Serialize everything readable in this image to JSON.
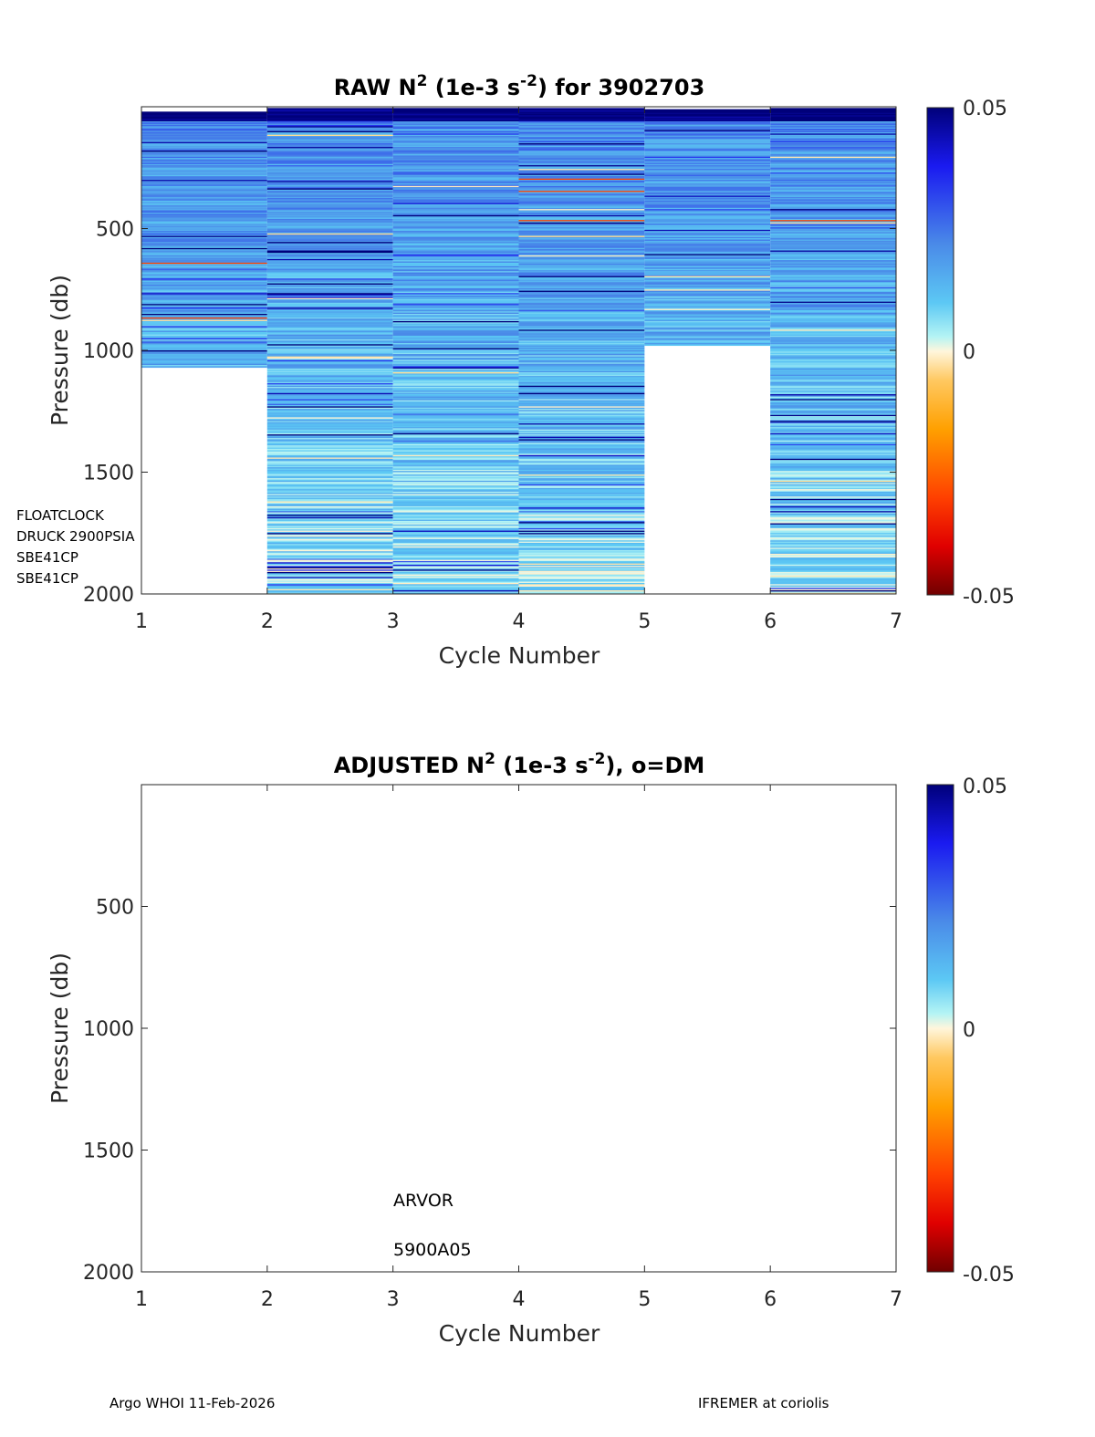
{
  "footer": {
    "left": "Argo WHOI 11-Feb-2026",
    "right": "IFREMER at coriolis"
  },
  "chart_data": [
    {
      "type": "heatmap",
      "title_prefix": "RAW N",
      "title_sup1": "2",
      "title_mid": " (1e-3 s",
      "title_sup2": "-2",
      "title_suffix": ") for 3902703",
      "xlabel": "Cycle Number",
      "ylabel": "Pressure (db)",
      "xlim": [
        1,
        7
      ],
      "ylim": [
        0,
        2000
      ],
      "x_ticks": [
        "1",
        "2",
        "3",
        "4",
        "5",
        "6",
        "7"
      ],
      "y_ticks": [
        "500",
        "1000",
        "1500",
        "2000"
      ],
      "y_tick_values": [
        500,
        1000,
        1500,
        2000
      ],
      "colorbar": {
        "min": -0.05,
        "max": 0.05,
        "tick_labels": [
          "0.05",
          "0",
          "-0.05"
        ],
        "colormap": "jet-like (dark blue → cyan → cream → orange → dark red)"
      },
      "sensor_labels": [
        "FLOATCLOCK",
        "DRUCK 2900PSIA",
        "SBE41CP",
        "SBE41CP"
      ],
      "profiles": [
        {
          "cycle": 1,
          "min_pressure": 20,
          "max_pressure": 1070
        },
        {
          "cycle": 2,
          "min_pressure": 5,
          "max_pressure": 2000
        },
        {
          "cycle": 3,
          "min_pressure": 5,
          "max_pressure": 2000
        },
        {
          "cycle": 4,
          "min_pressure": 5,
          "max_pressure": 2000
        },
        {
          "cycle": 5,
          "min_pressure": 10,
          "max_pressure": 980
        },
        {
          "cycle": 6,
          "min_pressure": 5,
          "max_pressure": 2000
        }
      ],
      "colors": {
        "axis": "#262626",
        "deep_blue": "#00008f",
        "cyan": "#8ff0ff",
        "cream": "#fff6dc",
        "dark_red": "#800000"
      }
    },
    {
      "type": "heatmap",
      "title_prefix": "ADJUSTED N",
      "title_sup1": "2",
      "title_mid": " (1e-3 s",
      "title_sup2": "-2",
      "title_suffix": "), o=DM",
      "xlabel": "Cycle Number",
      "ylabel": "Pressure (db)",
      "xlim": [
        1,
        7
      ],
      "ylim": [
        0,
        2000
      ],
      "x_ticks": [
        "1",
        "2",
        "3",
        "4",
        "5",
        "6",
        "7"
      ],
      "y_ticks": [
        "500",
        "1000",
        "1500",
        "2000"
      ],
      "y_tick_values": [
        500,
        1000,
        1500,
        2000
      ],
      "colorbar": {
        "min": -0.05,
        "max": 0.05,
        "tick_labels": [
          "0.05",
          "0",
          "-0.05"
        ]
      },
      "annotations": [
        "ARVOR",
        "5900A05"
      ],
      "profiles": []
    }
  ]
}
